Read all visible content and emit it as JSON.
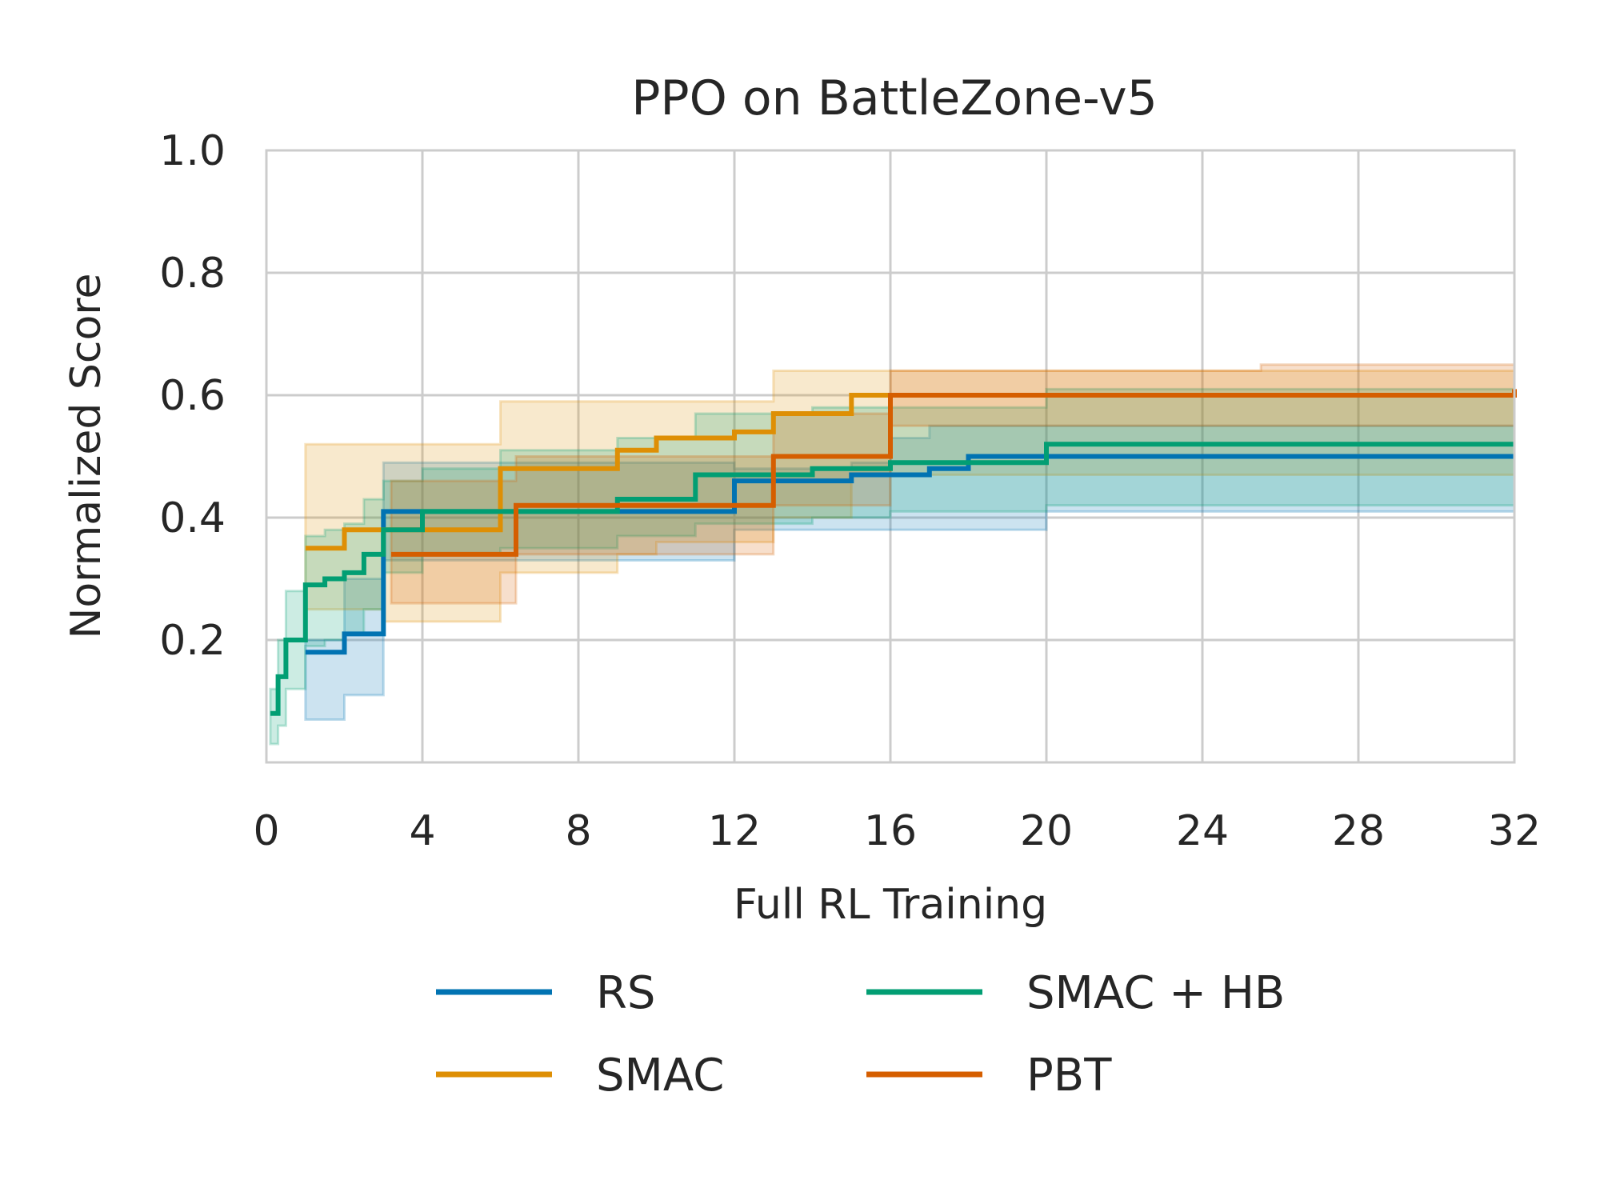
{
  "chart_data": {
    "type": "line",
    "title": "PPO on BattleZone-v5",
    "xlabel": "Full RL Training",
    "ylabel": "Normalized Score",
    "xlim": [
      0,
      32
    ],
    "ylim": [
      0,
      1.0
    ],
    "xticks": [
      "0",
      "4",
      "8",
      "12",
      "16",
      "20",
      "24",
      "28",
      "32"
    ],
    "yticks": [
      "0.2",
      "0.4",
      "0.6",
      "0.8",
      "1.0"
    ],
    "grid": true,
    "legend_position": "bottom",
    "series": [
      {
        "name": "RS",
        "color": "#0173b2",
        "x": [
          1.0,
          2.0,
          3.0,
          4.0,
          12.0,
          15.0,
          16.0,
          17.0,
          18.0,
          20.0,
          32.0
        ],
        "y": [
          0.18,
          0.21,
          0.41,
          0.41,
          0.46,
          0.47,
          0.47,
          0.48,
          0.5,
          0.5,
          0.5
        ],
        "band_low": [
          0.07,
          0.11,
          0.33,
          0.33,
          0.38,
          0.38,
          0.38,
          0.38,
          0.38,
          0.41,
          0.41
        ],
        "band_high": [
          0.2,
          0.3,
          0.49,
          0.49,
          0.48,
          0.49,
          0.53,
          0.55,
          0.55,
          0.55,
          0.55
        ]
      },
      {
        "name": "SMAC",
        "color": "#de8f05",
        "x": [
          1.0,
          2.0,
          3.0,
          6.0,
          9.0,
          10.0,
          12.0,
          13.0,
          15.0,
          32.0
        ],
        "y": [
          0.35,
          0.38,
          0.38,
          0.48,
          0.51,
          0.53,
          0.54,
          0.57,
          0.6,
          0.6
        ],
        "band_low": [
          0.25,
          0.25,
          0.23,
          0.31,
          0.34,
          0.36,
          0.36,
          0.4,
          0.47,
          0.48
        ],
        "band_high": [
          0.52,
          0.52,
          0.52,
          0.59,
          0.59,
          0.59,
          0.59,
          0.64,
          0.64,
          0.65
        ]
      },
      {
        "name": "SMAC + HB",
        "color": "#029e73",
        "x": [
          0.1,
          0.3,
          0.5,
          1.0,
          1.5,
          2.0,
          2.5,
          3.0,
          4.0,
          6.0,
          9.0,
          11.0,
          14.0,
          16.0,
          20.0,
          32.0
        ],
        "y": [
          0.08,
          0.14,
          0.2,
          0.29,
          0.3,
          0.31,
          0.34,
          0.38,
          0.41,
          0.41,
          0.43,
          0.47,
          0.48,
          0.49,
          0.52,
          0.52
        ],
        "band_low": [
          0.03,
          0.06,
          0.12,
          0.19,
          0.2,
          0.21,
          0.25,
          0.31,
          0.34,
          0.35,
          0.37,
          0.39,
          0.4,
          0.41,
          0.42,
          0.42
        ],
        "band_high": [
          0.12,
          0.2,
          0.28,
          0.37,
          0.38,
          0.39,
          0.43,
          0.46,
          0.48,
          0.51,
          0.53,
          0.57,
          0.58,
          0.58,
          0.61,
          0.6
        ]
      },
      {
        "name": "PBT",
        "color": "#d55e00",
        "x": [
          3.2,
          6.4,
          13.0,
          16.0,
          25.5,
          32.0
        ],
        "y": [
          0.34,
          0.42,
          0.5,
          0.6,
          0.6,
          0.61
        ],
        "band_low": [
          0.26,
          0.34,
          0.42,
          0.55,
          0.55,
          0.55
        ],
        "band_high": [
          0.46,
          0.5,
          0.57,
          0.64,
          0.65,
          0.65
        ]
      }
    ]
  }
}
